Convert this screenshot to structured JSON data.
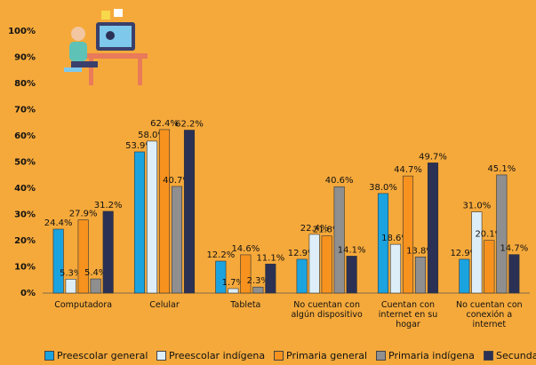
{
  "chart_data": {
    "type": "bar",
    "categories": [
      "Computadora",
      "Celular",
      "Tableta",
      "No cuentan con algún dispositivo",
      "Cuentan con internet en su hogar",
      "No cuentan con conexión a internet"
    ],
    "series": [
      {
        "name": "Preescolar general",
        "color": "#1ba3e0",
        "values": [
          24.4,
          53.9,
          12.2,
          12.9,
          38.0,
          12.9
        ],
        "value_labels": [
          "24.4%",
          "53.9%",
          "12.2%",
          "12.9%",
          "38.0%",
          "12.9%"
        ]
      },
      {
        "name": "Preescolar indígena",
        "color": "#ddeef8",
        "values": [
          5.3,
          58.0,
          1.7,
          22.4,
          18.6,
          31.0
        ],
        "value_labels": [
          "5.3%",
          "58.0%",
          "1.7%",
          "22.4%",
          "18.6%",
          "31.0%"
        ]
      },
      {
        "name": "Primaria general",
        "color": "#f7921e",
        "values": [
          27.9,
          62.4,
          14.6,
          21.8,
          44.7,
          20.1
        ],
        "value_labels": [
          "27.9%",
          "62.4%",
          "14.6%",
          "21.8%",
          "44.7%",
          "20.1%"
        ]
      },
      {
        "name": "Primaria indígena",
        "color": "#8f8f8f",
        "values": [
          5.4,
          40.7,
          2.3,
          40.6,
          13.8,
          45.1
        ],
        "value_labels": [
          "5.4%",
          "40.7%",
          "2.3%",
          "40.6%",
          "13.8%",
          "45.1%"
        ]
      },
      {
        "name": "Secundaria",
        "color": "#2b3155",
        "values": [
          31.2,
          62.2,
          11.1,
          14.1,
          49.7,
          14.7
        ],
        "value_labels": [
          "31.2%",
          "62.2%",
          "11.1%",
          "14.1%",
          "49.7%",
          "14.7%"
        ]
      }
    ],
    "ylim": [
      0,
      100
    ],
    "yticks": [
      {
        "value": 0,
        "label": "0%"
      },
      {
        "value": 10,
        "label": "10%"
      },
      {
        "value": 20,
        "label": "20%"
      },
      {
        "value": 30,
        "label": "30%"
      },
      {
        "value": 40,
        "label": "40%"
      },
      {
        "value": 50,
        "label": "50%"
      },
      {
        "value": 60,
        "label": "60%"
      },
      {
        "value": 70,
        "label": "70%"
      },
      {
        "value": 80,
        "label": "80%"
      },
      {
        "value": 90,
        "label": "90%"
      },
      {
        "value": 100,
        "label": "100%"
      }
    ]
  }
}
